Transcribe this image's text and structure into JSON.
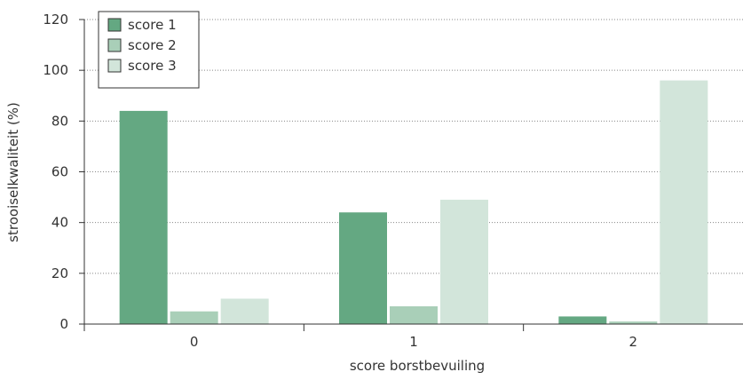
{
  "chart_data": {
    "type": "bar",
    "title": "",
    "xlabel": "score borstbevuiling",
    "ylabel": "strooiselkwaliteit (%)",
    "categories": [
      "0",
      "1",
      "2"
    ],
    "series": [
      {
        "name": "score 1",
        "values": [
          84,
          44,
          3
        ],
        "color": "#64a882"
      },
      {
        "name": "score 2",
        "values": [
          5,
          7,
          1
        ],
        "color": "#a9cfb8"
      },
      {
        "name": "score 3",
        "values": [
          10,
          49,
          96
        ],
        "color": "#d2e5da"
      }
    ],
    "ylim": [
      0,
      120
    ],
    "yticks": [
      "0",
      "20",
      "40",
      "60",
      "80",
      "100",
      "120"
    ],
    "grid": true,
    "legend_position": "top-left"
  }
}
